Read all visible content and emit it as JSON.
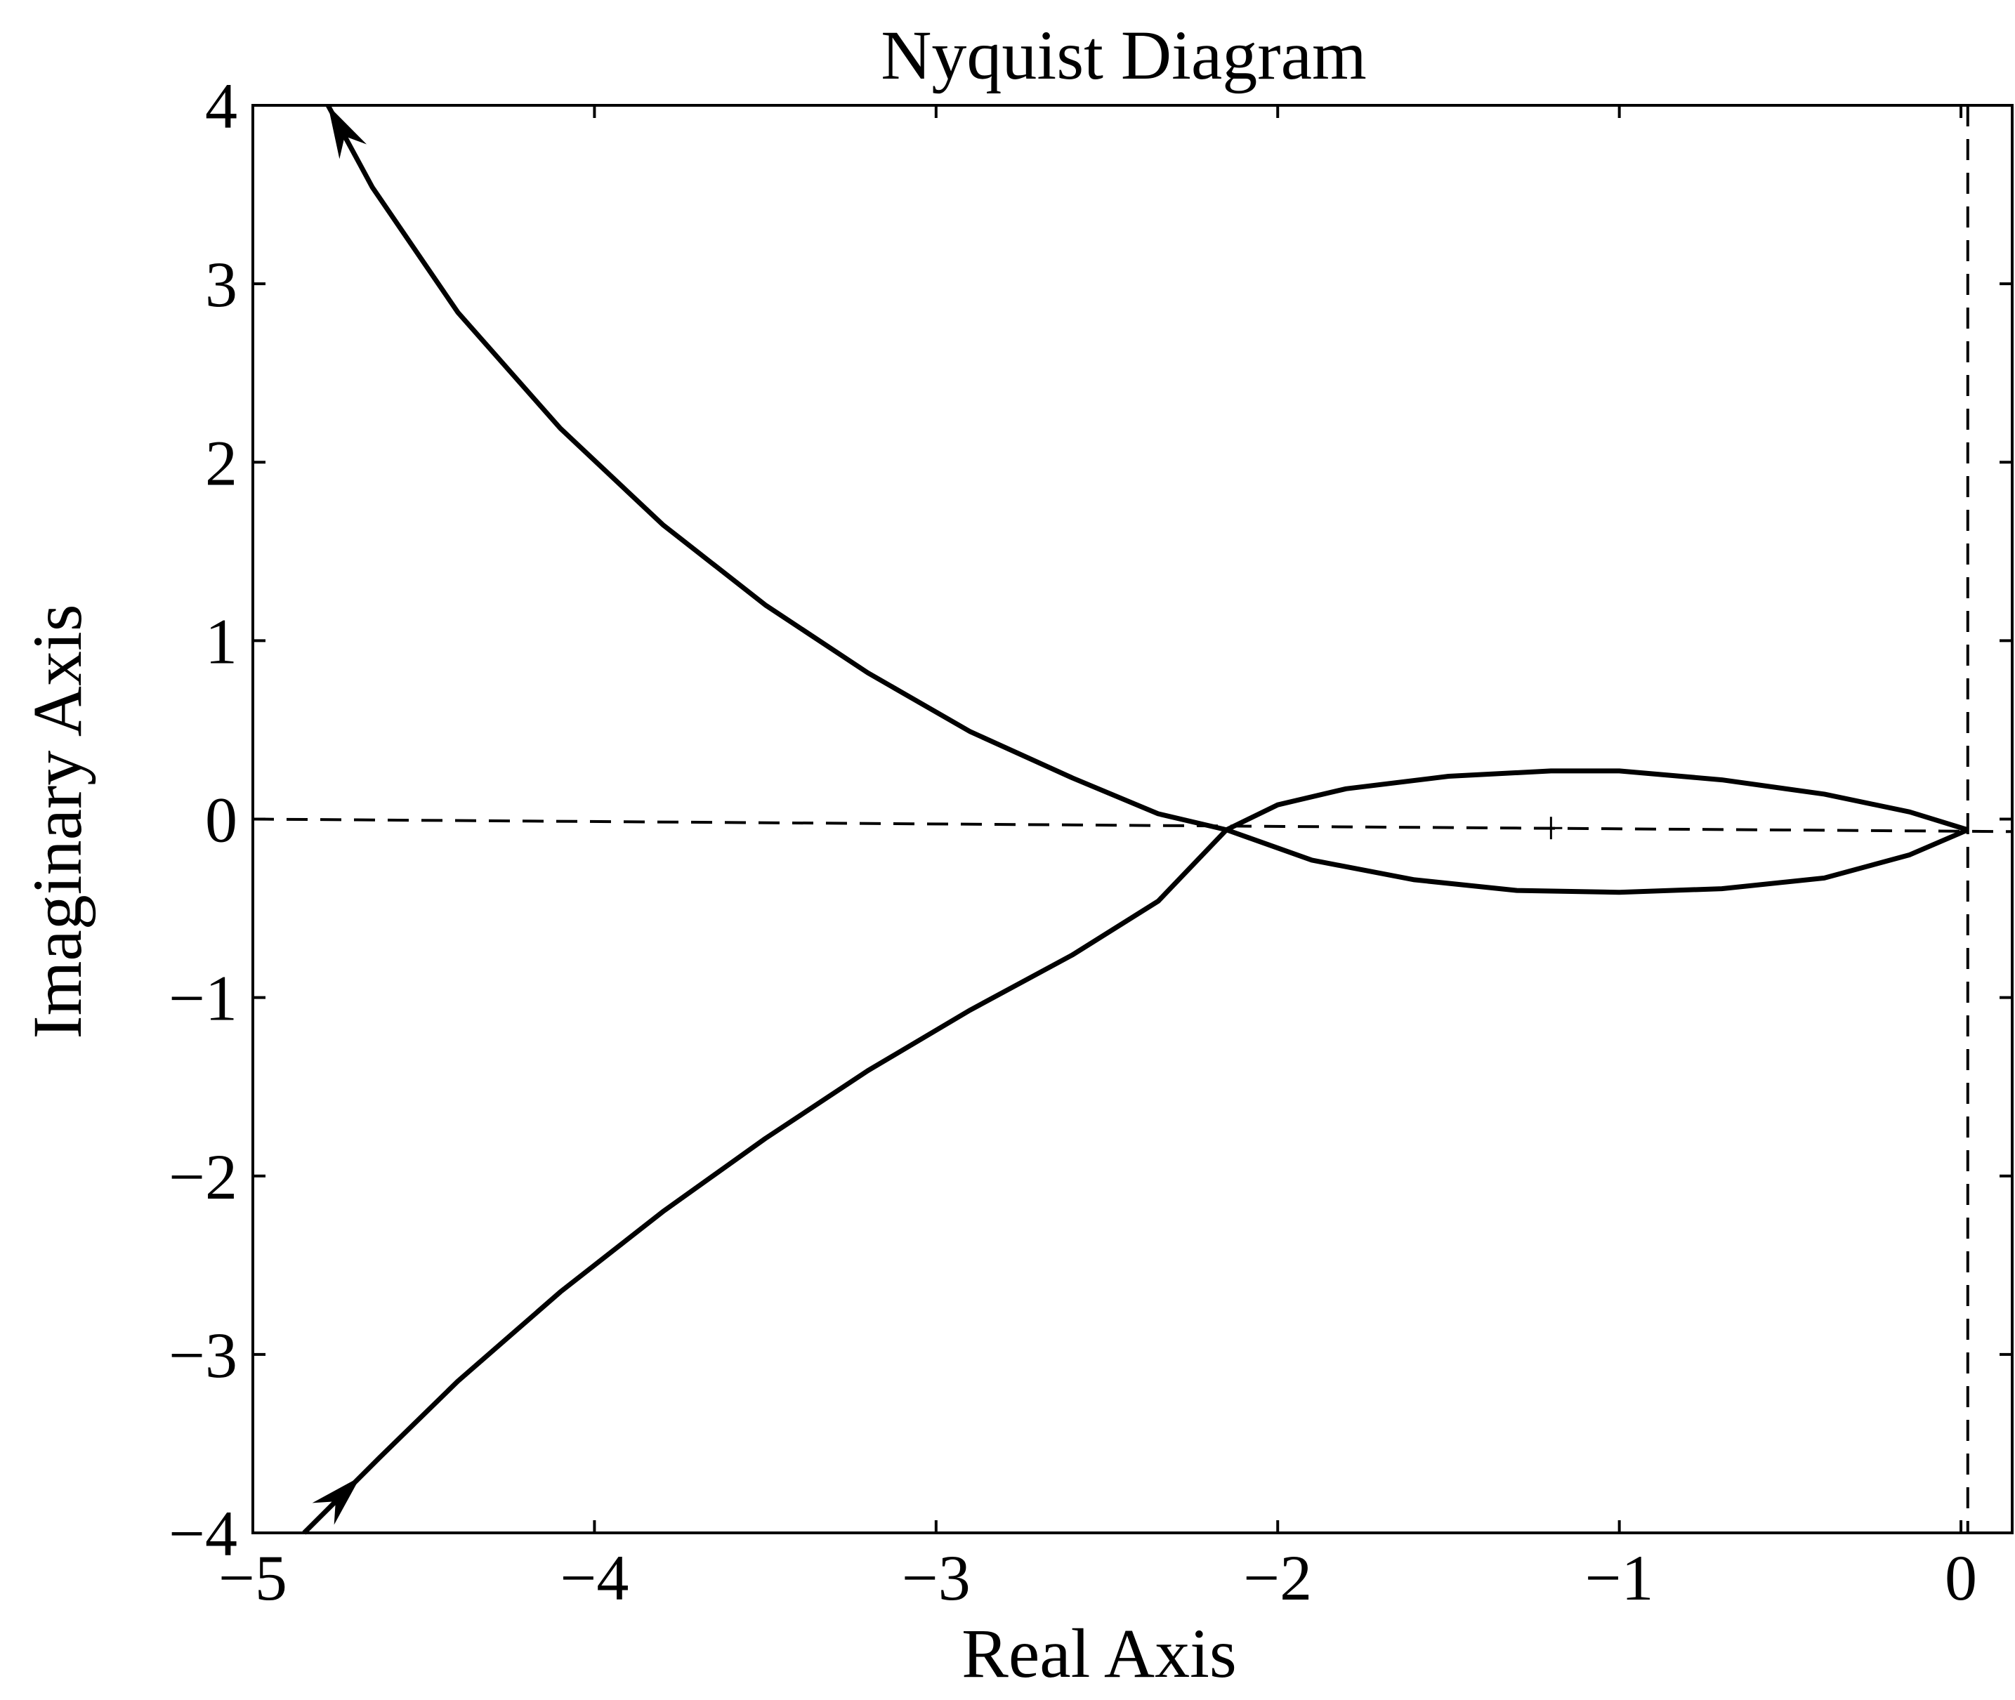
{
  "chart_data": {
    "type": "line",
    "title": "Nyquist Diagram",
    "xlabel": "Real Axis",
    "ylabel": "Imaginary Axis",
    "xlim": [
      -5,
      0.15
    ],
    "ylim": [
      -4,
      4
    ],
    "xticks": [
      {
        "value": -5,
        "label": "−5"
      },
      {
        "value": -4,
        "label": "−4"
      },
      {
        "value": -3,
        "label": "−3"
      },
      {
        "value": -2,
        "label": "−2"
      },
      {
        "value": -1,
        "label": "−1"
      },
      {
        "value": 0,
        "label": "0"
      }
    ],
    "yticks": [
      {
        "value": -4,
        "label": "−4"
      },
      {
        "value": -3,
        "label": "−3"
      },
      {
        "value": -2,
        "label": "−2"
      },
      {
        "value": -1,
        "label": "−1"
      },
      {
        "value": 0,
        "label": "0"
      },
      {
        "value": 1,
        "label": "1"
      },
      {
        "value": 2,
        "label": "2"
      },
      {
        "value": 3,
        "label": "3"
      },
      {
        "value": 4,
        "label": "4"
      }
    ],
    "grid": false,
    "critical_point": {
      "x": -1.2,
      "y": -0.05,
      "marker": "+"
    },
    "reference_lines": {
      "vertical": {
        "x": 0.02,
        "style": "dashed"
      },
      "horizontal": {
        "points": [
          [
            -5,
            0.0
          ],
          [
            0.15,
            -0.07
          ]
        ],
        "style": "dashed"
      }
    },
    "series": [
      {
        "values": [
          [
            -4.85,
            -4.0
          ],
          [
            -4.63,
            -3.58
          ],
          [
            -4.4,
            -3.15
          ],
          [
            -4.1,
            -2.65
          ],
          [
            -3.8,
            -2.2
          ],
          [
            -3.5,
            -1.79
          ],
          [
            -3.2,
            -1.41
          ],
          [
            -2.9,
            -1.07
          ],
          [
            -2.6,
            -0.76
          ],
          [
            -2.35,
            -0.46
          ],
          [
            -2.15,
            -0.06
          ],
          [
            -2.0,
            0.08
          ],
          [
            -1.8,
            0.17
          ],
          [
            -1.5,
            0.24
          ],
          [
            -1.2,
            0.27
          ],
          [
            -1.0,
            0.27
          ],
          [
            -0.7,
            0.22
          ],
          [
            -0.4,
            0.14
          ],
          [
            -0.15,
            0.04
          ],
          [
            0.02,
            -0.06
          ]
        ],
        "arrow": "forward",
        "color": "#000000"
      },
      {
        "values": [
          [
            0.02,
            -0.06
          ],
          [
            -0.15,
            -0.2
          ],
          [
            -0.4,
            -0.33
          ],
          [
            -0.7,
            -0.39
          ],
          [
            -1.0,
            -0.41
          ],
          [
            -1.3,
            -0.4
          ],
          [
            -1.6,
            -0.34
          ],
          [
            -1.9,
            -0.23
          ],
          [
            -2.15,
            -0.06
          ],
          [
            -2.35,
            0.03
          ],
          [
            -2.6,
            0.23
          ],
          [
            -2.9,
            0.49
          ],
          [
            -3.2,
            0.82
          ],
          [
            -3.5,
            1.2
          ],
          [
            -3.8,
            1.65
          ],
          [
            -4.1,
            2.19
          ],
          [
            -4.4,
            2.84
          ],
          [
            -4.65,
            3.54
          ],
          [
            -4.78,
            4.0
          ]
        ],
        "arrow": "forward",
        "color": "#000000"
      }
    ]
  }
}
